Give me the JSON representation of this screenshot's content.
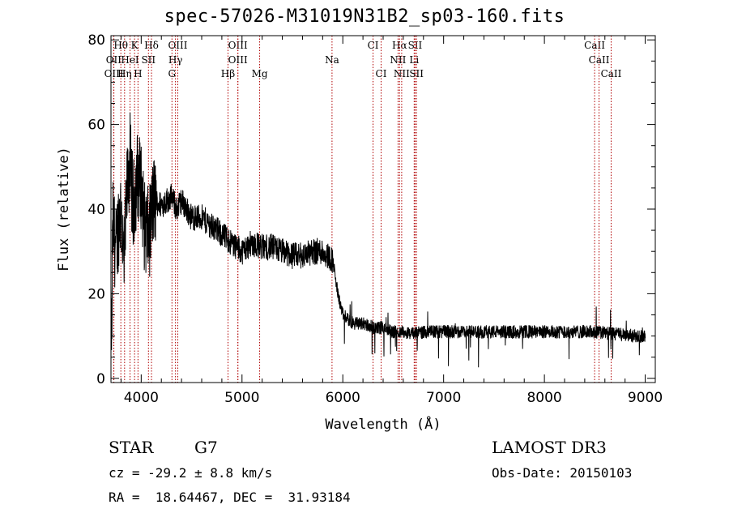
{
  "chart_data": {
    "type": "line",
    "title": "spec-57026-M31019N31B2_sp03-160.fits",
    "xlabel": "Wavelength (Å)",
    "ylabel": "Flux (relative)",
    "xlim": [
      3700,
      9100
    ],
    "ylim": [
      -1,
      81
    ],
    "xticks": [
      4000,
      5000,
      6000,
      7000,
      8000,
      9000
    ],
    "yticks": [
      0,
      20,
      40,
      60,
      80
    ],
    "spectrum_anchors": [
      [
        3700,
        8
      ],
      [
        3720,
        36
      ],
      [
        3750,
        30
      ],
      [
        3780,
        38
      ],
      [
        3800,
        40
      ],
      [
        3830,
        26
      ],
      [
        3860,
        45
      ],
      [
        3890,
        52
      ],
      [
        3920,
        40
      ],
      [
        3960,
        48
      ],
      [
        4000,
        46
      ],
      [
        4030,
        36
      ],
      [
        4080,
        34
      ],
      [
        4120,
        42
      ],
      [
        4200,
        41
      ],
      [
        4300,
        43
      ],
      [
        4350,
        40
      ],
      [
        4400,
        42
      ],
      [
        4500,
        38
      ],
      [
        4600,
        38
      ],
      [
        4700,
        36
      ],
      [
        4800,
        34
      ],
      [
        4900,
        32
      ],
      [
        5000,
        30
      ],
      [
        5100,
        32
      ],
      [
        5200,
        31
      ],
      [
        5300,
        31
      ],
      [
        5400,
        30
      ],
      [
        5500,
        29
      ],
      [
        5600,
        29
      ],
      [
        5700,
        30
      ],
      [
        5800,
        30
      ],
      [
        5900,
        28
      ],
      [
        5950,
        20
      ],
      [
        6000,
        15
      ],
      [
        6100,
        13
      ],
      [
        6200,
        13
      ],
      [
        6300,
        12
      ],
      [
        6400,
        12
      ],
      [
        6500,
        11
      ],
      [
        6600,
        11
      ],
      [
        6700,
        10.5
      ],
      [
        6800,
        11
      ],
      [
        7000,
        11
      ],
      [
        7500,
        11
      ],
      [
        8000,
        11
      ],
      [
        8500,
        11
      ],
      [
        8700,
        10.5
      ],
      [
        8900,
        10
      ],
      [
        9000,
        10
      ]
    ],
    "spectral_lines": [
      {
        "label": "Hθ",
        "wavelength": 3798,
        "row": 0
      },
      {
        "label": "K",
        "wavelength": 3934,
        "row": 0
      },
      {
        "label": "Hδ",
        "wavelength": 4102,
        "row": 0
      },
      {
        "label": "OIII",
        "wavelength": 4363,
        "row": 0
      },
      {
        "label": "OIII",
        "wavelength": 4959,
        "row": 0
      },
      {
        "label": "CI",
        "wavelength": 6300,
        "row": 0
      },
      {
        "label": "Hα",
        "wavelength": 6563,
        "row": 0
      },
      {
        "label": "SII",
        "wavelength": 6717,
        "row": 0
      },
      {
        "label": "CaII",
        "wavelength": 8498,
        "row": 0
      },
      {
        "label": "OII",
        "wavelength": 3727,
        "row": 1
      },
      {
        "label": "HeI",
        "wavelength": 3889,
        "row": 1
      },
      {
        "label": "SII",
        "wavelength": 4072,
        "row": 1
      },
      {
        "label": "Hγ",
        "wavelength": 4340,
        "row": 1
      },
      {
        "label": "OIII",
        "wavelength": 4959,
        "row": 1
      },
      {
        "label": "Na",
        "wavelength": 5893,
        "row": 1
      },
      {
        "label": "NII",
        "wavelength": 6548,
        "row": 1
      },
      {
        "label": "Li",
        "wavelength": 6708,
        "row": 1
      },
      {
        "label": "CaII",
        "wavelength": 8542,
        "row": 1
      },
      {
        "label": "OIII",
        "wavelength": 3729,
        "row": 2
      },
      {
        "label": "Hη",
        "wavelength": 3835,
        "row": 2
      },
      {
        "label": "H",
        "wavelength": 3968,
        "row": 2
      },
      {
        "label": "G",
        "wavelength": 4305,
        "row": 2
      },
      {
        "label": "Hβ",
        "wavelength": 4861,
        "row": 2
      },
      {
        "label": "Mg",
        "wavelength": 5175,
        "row": 2
      },
      {
        "label": "CI",
        "wavelength": 6380,
        "row": 2
      },
      {
        "label": "NII",
        "wavelength": 6584,
        "row": 2
      },
      {
        "label": "SII",
        "wavelength": 6731,
        "row": 2
      },
      {
        "label": "CaII",
        "wavelength": 8662,
        "row": 2
      }
    ]
  },
  "info": {
    "object_class": "STAR",
    "subclass": "G7",
    "survey": "LAMOST DR3",
    "redshift": "cz = -29.2 ± 8.8 km/s",
    "obs_date": "Obs-Date: 20150103",
    "coords": "RA =  18.64467, DEC =  31.93184"
  }
}
